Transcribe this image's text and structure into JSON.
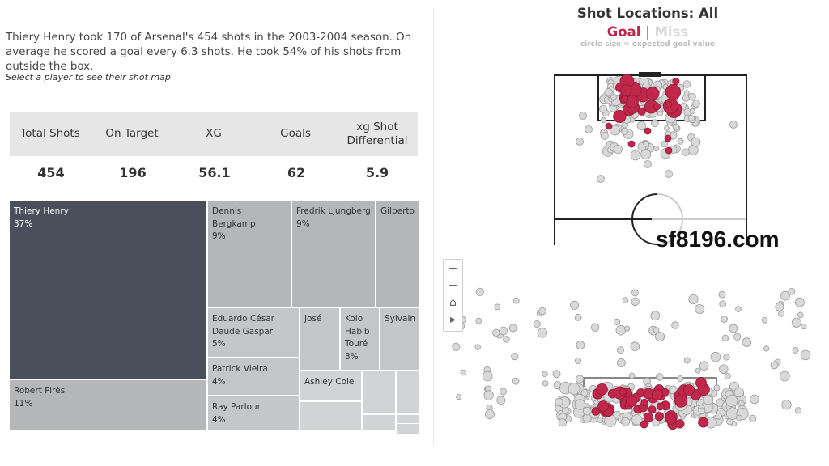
{
  "summary_text": "Thiery Henry took 170 of Arsenal's 454 shots in the 2003-2004 season. On average he scored a goal every 6.3 shots. He took 54% of his shots from outside the box.",
  "hint_text": "Select a player to see their shot map",
  "kpis": [
    {
      "label": "Total Shots",
      "value": "454"
    },
    {
      "label": "On Target",
      "value": "196"
    },
    {
      "label": "XG",
      "value": "56.1"
    },
    {
      "label": "Goals",
      "value": "62"
    },
    {
      "label": "xg Shot Differential",
      "value": "5.9"
    }
  ],
  "treemap": [
    {
      "name": "Thiery Henry",
      "pct": "37%"
    },
    {
      "name": "Robert Pirès",
      "pct": "11%"
    },
    {
      "name": "Dennis Bergkamp",
      "pct": "9%"
    },
    {
      "name": "Fredrik Ljungberg",
      "pct": "9%"
    },
    {
      "name": "Gilberto",
      "pct": ""
    },
    {
      "name": "Eduardo César Daude Gaspar",
      "pct": "5%"
    },
    {
      "name": "José",
      "pct": ""
    },
    {
      "name": "Kolo Habib Touré",
      "pct": "3%"
    },
    {
      "name": "Sylvain",
      "pct": ""
    },
    {
      "name": "Patrick Vieira",
      "pct": "4%"
    },
    {
      "name": "Ashley Cole",
      "pct": ""
    },
    {
      "name": "Ray Parlour",
      "pct": "4%"
    }
  ],
  "shot_map": {
    "title": "Shot Locations: All",
    "legend_goal": "Goal",
    "legend_sep": "|",
    "legend_miss": "Miss",
    "note": "circle size = expected goal value"
  },
  "zoom_controls": [
    "+",
    "−",
    "⌂",
    "▸"
  ],
  "watermark": "sf8196.com",
  "colors": {
    "goal": "#c0274b",
    "miss": "#d9d9d9",
    "selected_player": "#4a4f5b",
    "tile": "#b4b6b8",
    "tile_light": "#d2d3d4",
    "kpi_header_bg": "#e6e6e6"
  }
}
